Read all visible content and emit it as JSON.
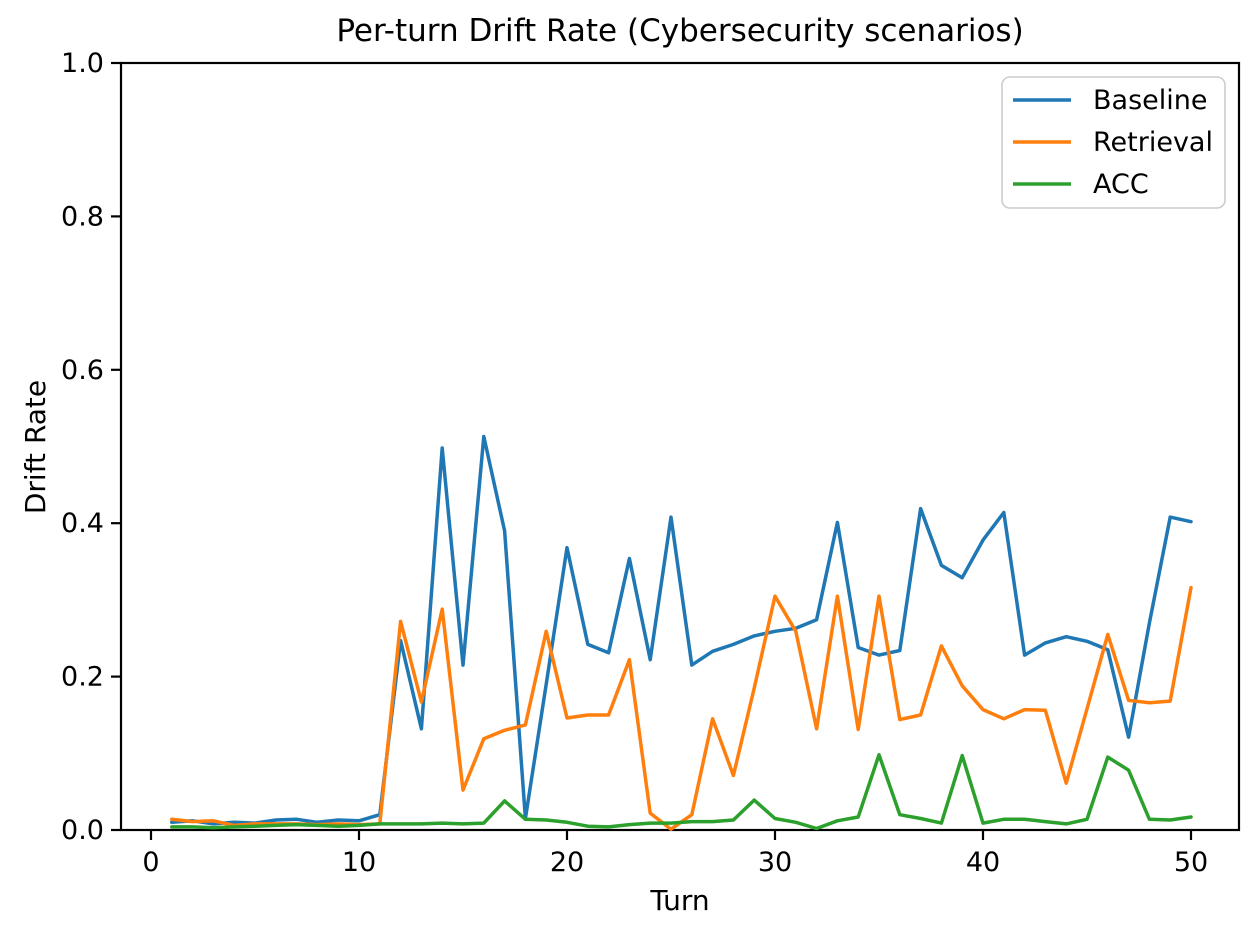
{
  "chart_data": {
    "type": "line",
    "title": "Per-turn Drift Rate (Cybersecurity scenarios)",
    "xlabel": "Turn",
    "ylabel": "Drift Rate",
    "x_ticks": [
      0,
      10,
      20,
      30,
      40,
      50
    ],
    "y_ticks": [
      0.0,
      0.2,
      0.4,
      0.6,
      0.8,
      1.0
    ],
    "y_tick_labels": [
      "0.0",
      "0.2",
      "0.4",
      "0.6",
      "0.8",
      "1.0"
    ],
    "xlim": [
      -1.44,
      52.31
    ],
    "ylim": [
      0.0,
      1.0
    ],
    "grid": false,
    "legend_position": "upper right",
    "x": [
      1,
      2,
      3,
      4,
      5,
      6,
      7,
      8,
      9,
      10,
      11,
      12,
      13,
      14,
      15,
      16,
      17,
      18,
      19,
      20,
      21,
      22,
      23,
      24,
      25,
      26,
      27,
      28,
      29,
      30,
      31,
      32,
      33,
      34,
      35,
      36,
      37,
      38,
      39,
      40,
      41,
      42,
      43,
      44,
      45,
      46,
      47,
      48,
      49,
      50
    ],
    "series": [
      {
        "name": "Baseline",
        "color": "#1f77b4",
        "values": [
          0.01,
          0.012,
          0.008,
          0.01,
          0.009,
          0.013,
          0.014,
          0.01,
          0.013,
          0.012,
          0.02,
          0.247,
          0.132,
          0.498,
          0.215,
          0.513,
          0.39,
          0.015,
          0.19,
          0.368,
          0.242,
          0.231,
          0.354,
          0.222,
          0.408,
          0.215,
          0.233,
          0.242,
          0.253,
          0.259,
          0.263,
          0.274,
          0.401,
          0.238,
          0.228,
          0.234,
          0.419,
          0.345,
          0.329,
          0.378,
          0.414,
          0.228,
          0.244,
          0.252,
          0.246,
          0.235,
          0.121,
          0.27,
          0.408,
          0.402
        ]
      },
      {
        "name": "Retrieval",
        "color": "#ff7f0e",
        "values": [
          0.014,
          0.011,
          0.012,
          0.006,
          0.008,
          0.008,
          0.008,
          0.007,
          0.008,
          0.007,
          0.008,
          0.272,
          0.167,
          0.288,
          0.052,
          0.119,
          0.13,
          0.137,
          0.259,
          0.146,
          0.15,
          0.15,
          0.222,
          0.022,
          0.001,
          0.02,
          0.145,
          0.071,
          0.185,
          0.305,
          0.259,
          0.132,
          0.305,
          0.131,
          0.305,
          0.144,
          0.15,
          0.24,
          0.188,
          0.157,
          0.145,
          0.157,
          0.156,
          0.061,
          0.158,
          0.255,
          0.169,
          0.166,
          0.168,
          0.316
        ]
      },
      {
        "name": "ACC",
        "color": "#2ca02c",
        "values": [
          0.004,
          0.004,
          0.003,
          0.004,
          0.005,
          0.006,
          0.007,
          0.006,
          0.005,
          0.006,
          0.008,
          0.008,
          0.008,
          0.009,
          0.008,
          0.009,
          0.038,
          0.014,
          0.013,
          0.01,
          0.005,
          0.004,
          0.007,
          0.009,
          0.009,
          0.011,
          0.011,
          0.013,
          0.039,
          0.015,
          0.01,
          0.002,
          0.012,
          0.017,
          0.098,
          0.02,
          0.015,
          0.009,
          0.097,
          0.009,
          0.014,
          0.014,
          0.011,
          0.008,
          0.014,
          0.095,
          0.078,
          0.014,
          0.013,
          0.017
        ]
      }
    ]
  }
}
